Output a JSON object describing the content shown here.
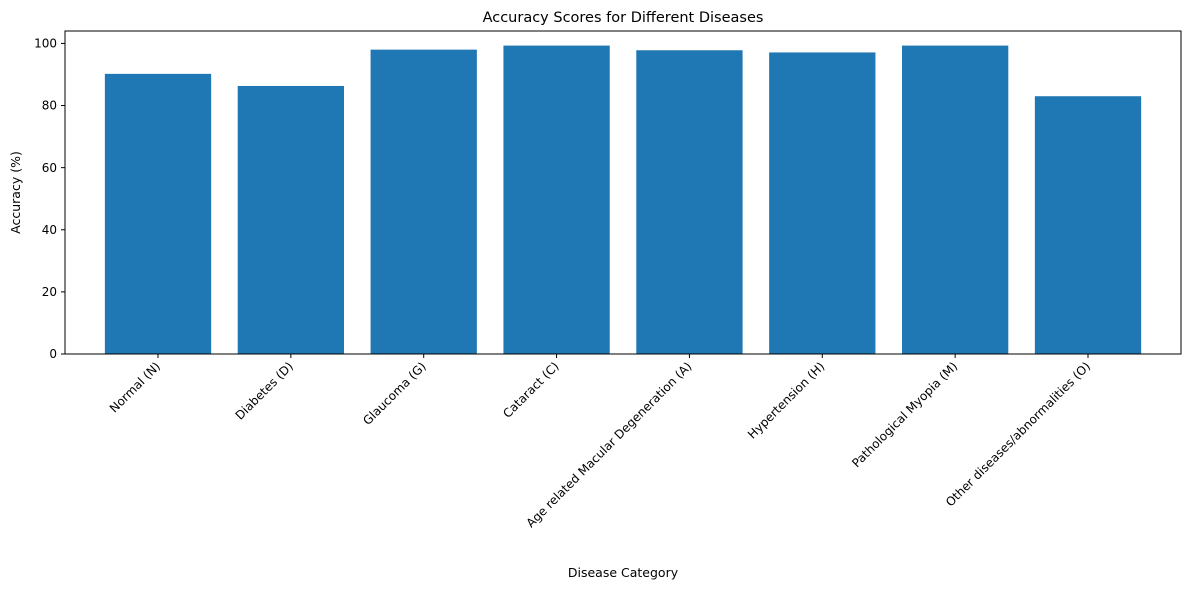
{
  "chart_data": {
    "type": "bar",
    "title": "Accuracy Scores for Different Diseases",
    "xlabel": "Disease Category",
    "ylabel": "Accuracy (%)",
    "categories": [
      "Normal (N)",
      "Diabetes (D)",
      "Glaucoma (G)",
      "Cataract (C)",
      "Age related Macular Degeneration (A)",
      "Hypertension (H)",
      "Pathological Myopia (M)",
      "Other diseases/abnormalities (O)"
    ],
    "values": [
      90.2,
      86.3,
      98.0,
      99.3,
      97.8,
      97.1,
      99.3,
      83.0
    ],
    "ylim": [
      0,
      104
    ],
    "yticks": [
      0,
      20,
      40,
      60,
      80,
      100
    ],
    "bar_color": "#1f77b4",
    "grid": false,
    "legend": "none"
  }
}
